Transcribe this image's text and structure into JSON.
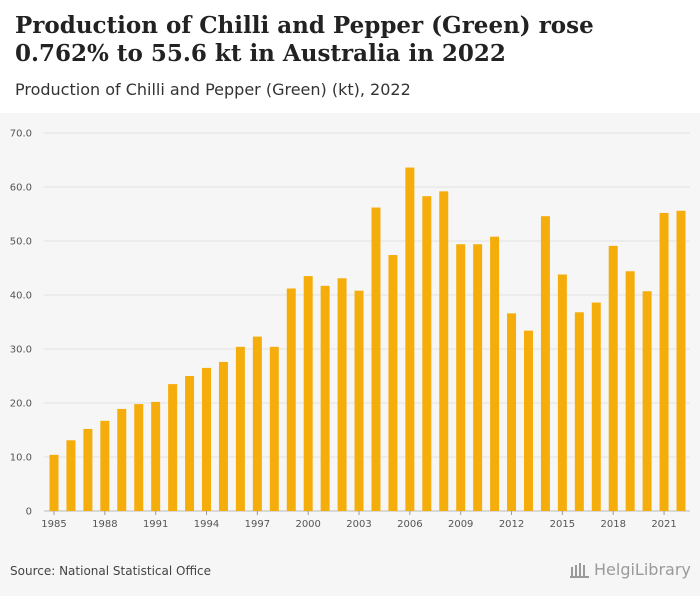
{
  "header": {
    "title": "Production of Chilli and Pepper (Green) rose 0.762% to 55.6 kt in Australia in 2022",
    "subtitle": "Production of Chilli and Pepper (Green) (kt), 2022"
  },
  "footer": {
    "source": "Source: National Statistical Office",
    "brand": "HelgiLibrary"
  },
  "chart_data": {
    "type": "bar",
    "title": "Production of Chilli and Pepper (Green) (kt), 2022",
    "xlabel": "",
    "ylabel": "",
    "ylim": [
      0,
      70
    ],
    "yticks": [
      0,
      10.0,
      20.0,
      30.0,
      40.0,
      50.0,
      60.0,
      70.0
    ],
    "ytick_labels": [
      "0",
      "10.0",
      "20.0",
      "30.0",
      "40.0",
      "50.0",
      "60.0",
      "70.0"
    ],
    "grid": true,
    "bar_color": "#f5ad0c",
    "categories": [
      "1985",
      "1986",
      "1987",
      "1988",
      "1989",
      "1990",
      "1991",
      "1992",
      "1993",
      "1994",
      "1995",
      "1996",
      "1997",
      "1998",
      "1999",
      "2000",
      "2001",
      "2002",
      "2003",
      "2004",
      "2005",
      "2006",
      "2007",
      "2008",
      "2009",
      "2010",
      "2011",
      "2012",
      "2013",
      "2014",
      "2015",
      "2016",
      "2017",
      "2018",
      "2019",
      "2020",
      "2021",
      "2022"
    ],
    "xtick_labels": [
      "1985",
      "1988",
      "1991",
      "1994",
      "1997",
      "2000",
      "2003",
      "2006",
      "2009",
      "2012",
      "2015",
      "2018",
      "2021"
    ],
    "values": [
      10.4,
      13.1,
      15.2,
      16.7,
      18.9,
      19.8,
      20.2,
      23.5,
      25.0,
      26.5,
      27.6,
      30.4,
      32.3,
      30.4,
      41.2,
      43.5,
      41.7,
      43.1,
      40.8,
      56.2,
      47.4,
      63.6,
      58.3,
      59.2,
      49.4,
      49.4,
      50.8,
      36.6,
      33.4,
      54.6,
      43.8,
      36.8,
      38.6,
      49.1,
      44.4,
      40.7,
      55.2,
      55.6
    ]
  }
}
